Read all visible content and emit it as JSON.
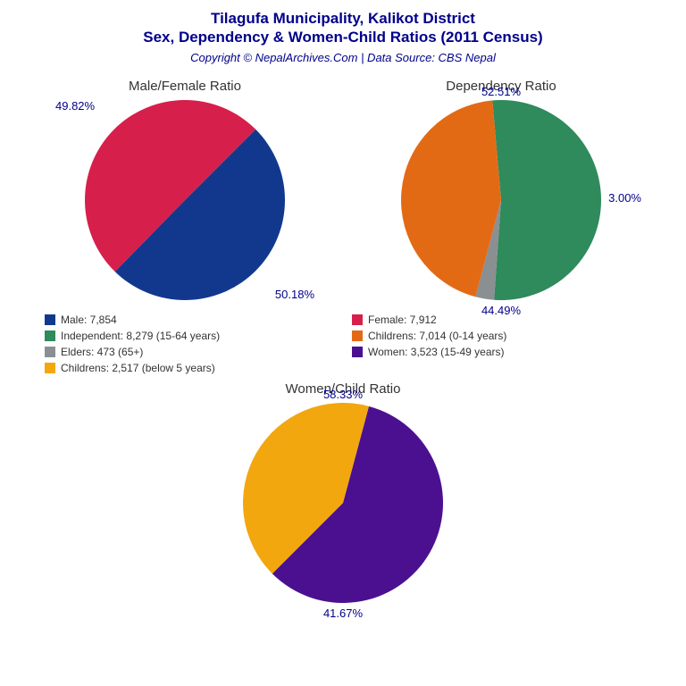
{
  "title": {
    "line1": "Tilagufa Municipality, Kalikot District",
    "line2": "Sex, Dependency & Women-Child Ratios (2011 Census)",
    "subtitle": "Copyright © NepalArchives.Com | Data Source: CBS Nepal",
    "color": "#00008b",
    "fontsize_title": 17,
    "fontsize_subtitle": 13
  },
  "pie_size": 230,
  "label_color": "#00008b",
  "label_fontsize": 13,
  "chart_title_color": "#333333",
  "chart_title_fontsize": 15,
  "background_color": "#ffffff",
  "legend_fontsize": 12,
  "charts": {
    "mf": {
      "title": "Male/Female Ratio",
      "slices": [
        {
          "label": "49.82%",
          "value": 49.82,
          "color": "#12388e",
          "label_pos": "top-left"
        },
        {
          "label": "50.18%",
          "value": 50.18,
          "color": "#d71f4b",
          "label_pos": "bottom-right"
        }
      ],
      "rotation_deg": -45
    },
    "dep": {
      "title": "Dependency Ratio",
      "slices": [
        {
          "label": "52.51%",
          "value": 52.51,
          "color": "#2f8a5c",
          "label_pos": "top"
        },
        {
          "label": "3.00%",
          "value": 3.0,
          "color": "#8a8f92",
          "label_pos": "right"
        },
        {
          "label": "44.49%",
          "value": 44.49,
          "color": "#e36a15",
          "label_pos": "bottom"
        }
      ],
      "rotation_deg": -95
    },
    "wc": {
      "title": "Women/Child Ratio",
      "slices": [
        {
          "label": "58.33%",
          "value": 58.33,
          "color": "#4b1090",
          "label_pos": "top"
        },
        {
          "label": "41.67%",
          "value": 41.67,
          "color": "#f2a70e",
          "label_pos": "bottom"
        }
      ],
      "rotation_deg": -75
    }
  },
  "legend": [
    {
      "color": "#12388e",
      "text": "Male: 7,854"
    },
    {
      "color": "#d71f4b",
      "text": "Female: 7,912"
    },
    {
      "color": "#2f8a5c",
      "text": "Independent: 8,279 (15-64 years)"
    },
    {
      "color": "#e36a15",
      "text": "Childrens: 7,014 (0-14 years)"
    },
    {
      "color": "#8a8f92",
      "text": "Elders: 473 (65+)"
    },
    {
      "color": "#4b1090",
      "text": "Women: 3,523 (15-49 years)"
    },
    {
      "color": "#f2a70e",
      "text": "Childrens: 2,517 (below 5 years)"
    }
  ]
}
